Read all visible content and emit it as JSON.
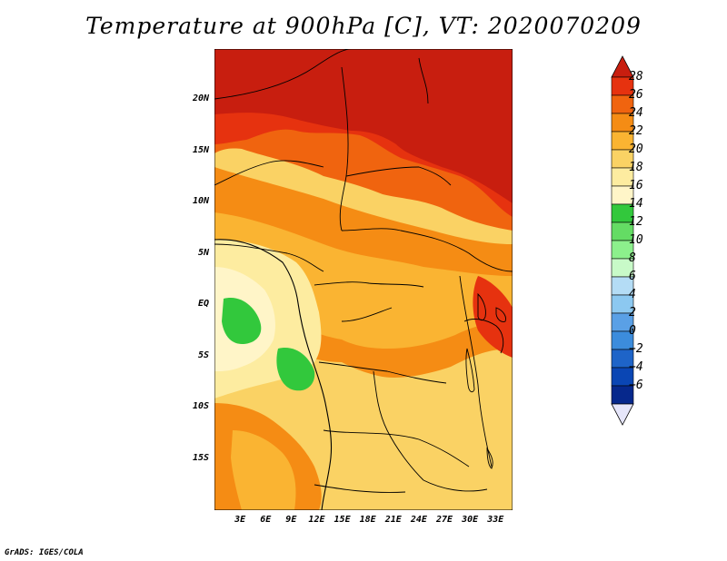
{
  "title": "Temperature at 900hPa [C], VT: 2020070209",
  "footer": "GrADS: IGES/COLA",
  "map": {
    "lon_range": [
      0,
      35
    ],
    "lat_range": [
      -20,
      25
    ],
    "y_ticks": [
      {
        "lat": 20,
        "label": "20N"
      },
      {
        "lat": 15,
        "label": "15N"
      },
      {
        "lat": 10,
        "label": "10N"
      },
      {
        "lat": 5,
        "label": "5N"
      },
      {
        "lat": 0,
        "label": "EQ"
      },
      {
        "lat": -5,
        "label": "5S"
      },
      {
        "lat": -10,
        "label": "10S"
      },
      {
        "lat": -15,
        "label": "15S"
      }
    ],
    "x_ticks": [
      {
        "lon": 3,
        "label": "3E"
      },
      {
        "lon": 6,
        "label": "6E"
      },
      {
        "lon": 9,
        "label": "9E"
      },
      {
        "lon": 12,
        "label": "12E"
      },
      {
        "lon": 15,
        "label": "15E"
      },
      {
        "lon": 18,
        "label": "18E"
      },
      {
        "lon": 21,
        "label": "21E"
      },
      {
        "lon": 24,
        "label": "24E"
      },
      {
        "lon": 27,
        "label": "27E"
      },
      {
        "lon": 30,
        "label": "30E"
      },
      {
        "lon": 33,
        "label": "33E"
      }
    ]
  },
  "colorbar": {
    "levels": [
      "28",
      "26",
      "24",
      "22",
      "20",
      "18",
      "16",
      "14",
      "12",
      "10",
      "8",
      "6",
      "4",
      "2",
      "0",
      "−2",
      "−4",
      "−6"
    ],
    "colors": [
      "#c81e0f",
      "#e6320f",
      "#f0640f",
      "#f58c14",
      "#fab432",
      "#fad264",
      "#fdeca0",
      "#fff5c8",
      "#32c83c",
      "#64dc64",
      "#8cf08c",
      "#c8fac8",
      "#b4dcf5",
      "#8cc8f0",
      "#5aa0e6",
      "#3c8cdc",
      "#1e64c8",
      "#0a46b4",
      "#06288c",
      "#000064"
    ],
    "over_color": "#c81e0f",
    "under_color": "#e6e6fa"
  }
}
